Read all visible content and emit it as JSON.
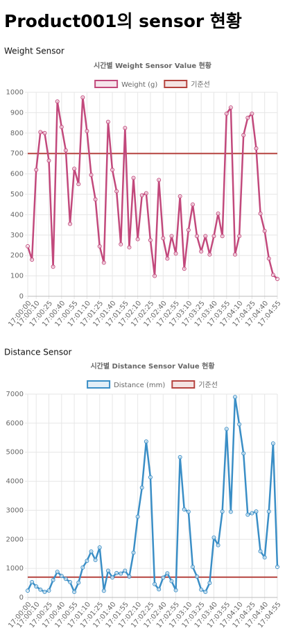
{
  "heading": "Product001의 sensor 현황",
  "sections": [
    "Weight Sensor",
    "Distance Sensor"
  ],
  "chart_data": [
    {
      "type": "line",
      "title": "시간별 Weight Sensor Value 현황",
      "categories": [
        "17:00:00",
        null,
        "17:00:10",
        null,
        null,
        "17:00:25",
        null,
        null,
        "17:00:40",
        null,
        null,
        "17:00:55",
        null,
        null,
        "17:01:10",
        null,
        null,
        "17:01:25",
        null,
        null,
        "17:01:40",
        null,
        null,
        "17:01:55",
        null,
        null,
        "17:02:10",
        null,
        null,
        "17:02:25",
        null,
        null,
        "17:02:40",
        null,
        null,
        "17:02:55",
        null,
        null,
        "17:03:10",
        null,
        null,
        "17:03:25",
        null,
        null,
        "17:03:40",
        null,
        null,
        "17:03:55",
        null,
        null,
        "17:04:10",
        null,
        null,
        "17:04:25",
        null,
        null,
        "17:04:40",
        null,
        null,
        "17:04:55"
      ],
      "series": [
        {
          "name": "Weight (g)",
          "color": "#c2497c",
          "values": [
            245,
            180,
            620,
            805,
            800,
            665,
            145,
            955,
            830,
            715,
            355,
            625,
            550,
            975,
            810,
            595,
            475,
            245,
            165,
            855,
            620,
            515,
            255,
            825,
            240,
            580,
            280,
            495,
            505,
            275,
            100,
            570,
            285,
            185,
            295,
            210,
            490,
            135,
            325,
            450,
            295,
            220,
            295,
            205,
            295,
            405,
            295,
            895,
            925,
            205,
            295,
            790,
            875,
            895,
            725,
            405,
            320,
            185,
            105,
            85
          ]
        }
      ],
      "reference_line": {
        "name": "기준선",
        "value": 700,
        "color": "#b5433f"
      },
      "ylim": [
        0,
        1000
      ],
      "yticks": [
        0,
        100,
        200,
        300,
        400,
        500,
        600,
        700,
        800,
        900,
        1000
      ],
      "grid": true
    },
    {
      "type": "line",
      "title": "시간별 Distance Sensor Value 현황",
      "categories": [
        "17:00:00",
        null,
        "17:00:10",
        null,
        null,
        "17:00:25",
        null,
        null,
        "17:00:40",
        null,
        null,
        "17:00:55",
        null,
        null,
        "17:01:10",
        null,
        null,
        "17:01:25",
        null,
        null,
        "17:01:40",
        null,
        null,
        "17:01:55",
        null,
        null,
        "17:02:10",
        null,
        null,
        "17:02:25",
        null,
        null,
        "17:02:40",
        null,
        null,
        "17:02:55",
        null,
        null,
        "17:03:10",
        null,
        null,
        "17:03:25",
        null,
        null,
        "17:03:40",
        null,
        null,
        "17:03:55",
        null,
        null,
        "17:04:10",
        null,
        null,
        "17:04:25",
        null,
        null,
        "17:04:40",
        null,
        null,
        "17:04:55"
      ],
      "series": [
        {
          "name": "Distance (mm)",
          "color": "#3a8ec6",
          "values": [
            235,
            530,
            380,
            270,
            190,
            240,
            600,
            880,
            740,
            640,
            530,
            190,
            510,
            1030,
            1260,
            1580,
            1290,
            1720,
            230,
            920,
            690,
            840,
            820,
            920,
            720,
            1540,
            2780,
            3780,
            5370,
            4140,
            460,
            280,
            680,
            830,
            560,
            250,
            4830,
            3030,
            2950,
            1050,
            720,
            270,
            190,
            500,
            2060,
            1800,
            2960,
            5800,
            2950,
            6900,
            5960,
            4960,
            2850,
            2900,
            2960,
            1590,
            1380,
            2960,
            5300,
            1050
          ]
        }
      ],
      "reference_line": {
        "name": "기준선",
        "value": 700,
        "color": "#b5433f"
      },
      "ylim": [
        0,
        7000
      ],
      "yticks": [
        0,
        1000,
        2000,
        3000,
        4000,
        5000,
        6000,
        7000
      ],
      "grid": true
    }
  ]
}
